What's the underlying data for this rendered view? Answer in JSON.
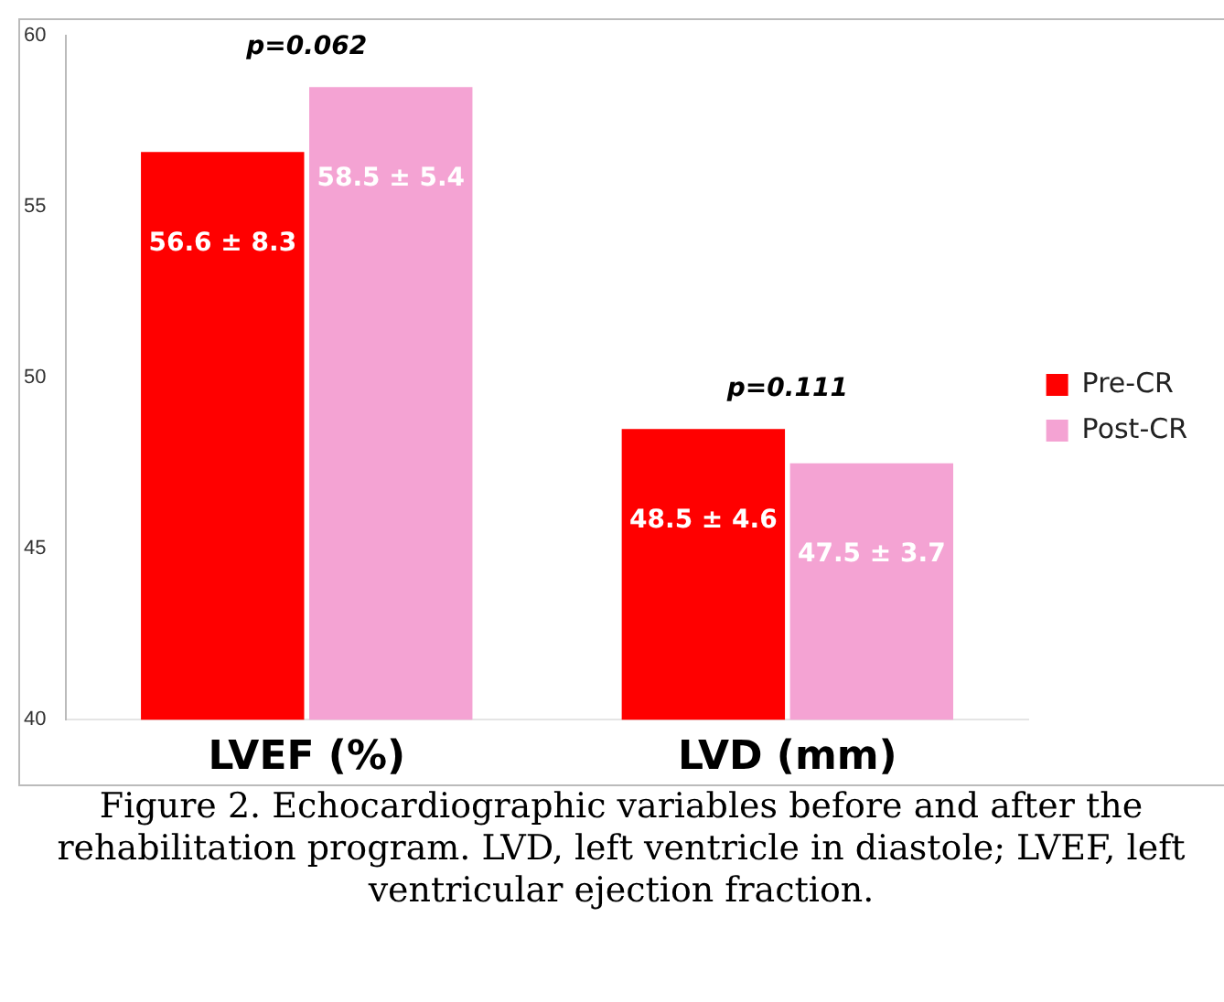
{
  "chart_data": {
    "type": "bar",
    "categories": [
      "LVEF (%)",
      "LVD (mm)"
    ],
    "series": [
      {
        "name": "Pre-CR",
        "color": "#ff0000",
        "values": [
          56.6,
          48.5
        ],
        "value_labels": [
          "56.6 ± 8.3",
          "48.5 ± 4.6"
        ]
      },
      {
        "name": "Post-CR",
        "color": "#f4a3d3",
        "values": [
          58.5,
          47.5
        ],
        "value_labels": [
          "58.5 ± 5.4",
          "47.5 ± 3.7"
        ]
      }
    ],
    "ylim": [
      40,
      60
    ],
    "yticks": [
      40,
      45,
      50,
      55,
      60
    ],
    "grid": false,
    "legend": "right",
    "annotations": [
      "p=0.062",
      "p=0.111",
      "Figure 2. Echocardiographic variables before and after the rehabilitation program. LVD, left ventricle in diastole; LVEF, left ventricular ejection fraction."
    ]
  }
}
